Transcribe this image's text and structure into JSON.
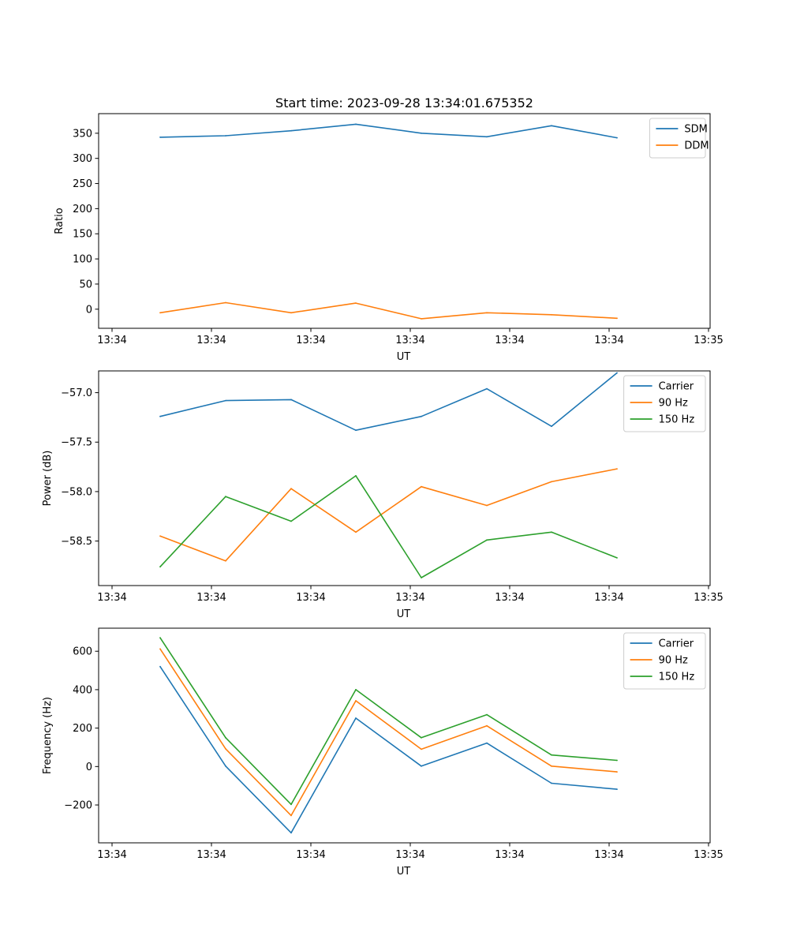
{
  "chart_data": [
    {
      "type": "line",
      "title": "Start time: 2023-09-28 13:34:01.675352",
      "xlabel": "UT",
      "ylabel": "Ratio",
      "x_tick_labels": [
        "13:34",
        "13:34",
        "13:34",
        "13:34",
        "13:34",
        "13:34",
        "13:35"
      ],
      "y_ticks": [
        0,
        50,
        100,
        150,
        200,
        250,
        300,
        350
      ],
      "y_tick_labels": [
        "0",
        "50",
        "100",
        "150",
        "200",
        "250",
        "300",
        "350"
      ],
      "xlim": [
        0,
        6
      ],
      "ylim": [
        -38,
        389
      ],
      "x": [
        0.5,
        1.15,
        1.8,
        2.45,
        3.1,
        3.75,
        4.4,
        5.05
      ],
      "series": [
        {
          "name": "SDM",
          "color": "#1f77b4",
          "values": [
            342,
            345,
            355,
            368,
            350,
            343,
            365,
            341
          ]
        },
        {
          "name": "DDM",
          "color": "#ff7f0e",
          "values": [
            -7,
            13,
            -7,
            12,
            -19,
            -7,
            -11,
            -18
          ]
        }
      ],
      "legend": "top-right"
    },
    {
      "type": "line",
      "title": "",
      "xlabel": "UT",
      "ylabel": "Power (dB)",
      "x_tick_labels": [
        "13:34",
        "13:34",
        "13:34",
        "13:34",
        "13:34",
        "13:34",
        "13:35"
      ],
      "y_ticks": [
        -58.5,
        -58.0,
        -57.5,
        -57.0
      ],
      "y_tick_labels": [
        "−58.5",
        "−58.0",
        "−57.5",
        "−57.0"
      ],
      "xlim": [
        0,
        6
      ],
      "ylim": [
        -58.95,
        -56.78
      ],
      "x": [
        0.5,
        1.15,
        1.8,
        2.45,
        3.1,
        3.75,
        4.4,
        5.05
      ],
      "series": [
        {
          "name": "Carrier",
          "color": "#1f77b4",
          "values": [
            -57.24,
            -57.08,
            -57.07,
            -57.38,
            -57.24,
            -56.96,
            -57.34,
            -56.8
          ]
        },
        {
          "name": "90 Hz",
          "color": "#ff7f0e",
          "values": [
            -58.45,
            -58.7,
            -57.97,
            -58.41,
            -57.95,
            -58.14,
            -57.9,
            -57.77
          ]
        },
        {
          "name": "150 Hz",
          "color": "#2ca02c",
          "values": [
            -58.76,
            -58.05,
            -58.3,
            -57.84,
            -58.87,
            -58.49,
            -58.41,
            -58.67
          ]
        }
      ],
      "legend": "top-right"
    },
    {
      "type": "line",
      "title": "",
      "xlabel": "UT",
      "ylabel": "Frequency (Hz)",
      "x_tick_labels": [
        "13:34",
        "13:34",
        "13:34",
        "13:34",
        "13:34",
        "13:34",
        "13:35"
      ],
      "y_ticks": [
        -200,
        0,
        200,
        400,
        600
      ],
      "y_tick_labels": [
        "−200",
        "0",
        "200",
        "400",
        "600"
      ],
      "xlim": [
        0,
        6
      ],
      "ylim": [
        -397,
        720
      ],
      "x": [
        0.5,
        1.15,
        1.8,
        2.45,
        3.1,
        3.75,
        4.4,
        5.05
      ],
      "series": [
        {
          "name": "Carrier",
          "color": "#1f77b4",
          "values": [
            520,
            2,
            -345,
            252,
            2,
            122,
            -87,
            -118
          ]
        },
        {
          "name": "90 Hz",
          "color": "#ff7f0e",
          "values": [
            612,
            92,
            -255,
            342,
            90,
            212,
            2,
            -28
          ]
        },
        {
          "name": "150 Hz",
          "color": "#2ca02c",
          "values": [
            670,
            150,
            -197,
            400,
            150,
            270,
            60,
            32
          ]
        }
      ],
      "legend": "top-right"
    }
  ]
}
